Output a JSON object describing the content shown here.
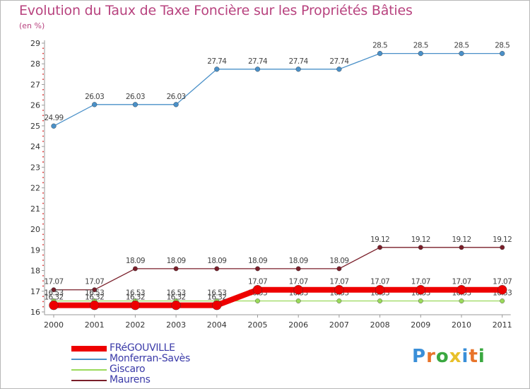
{
  "header": {
    "title": "Evolution du Taux de Taxe Foncière sur les Propriétés Bâties",
    "unit": "(en %)"
  },
  "logo": {
    "text": "Proxiti",
    "colors": [
      "#3a8fd8",
      "#e8742a",
      "#3aa840",
      "#e8c02a",
      "#3a8fd8",
      "#e8742a",
      "#3aa840"
    ]
  },
  "chart_data": {
    "type": "line",
    "x": [
      "2000",
      "2001",
      "2002",
      "2003",
      "2004",
      "2005",
      "2006",
      "2007",
      "2008",
      "2009",
      "2010",
      "2011"
    ],
    "ylim": [
      16,
      29
    ],
    "yticks": [
      "16",
      "17",
      "18",
      "19",
      "20",
      "21",
      "22",
      "23",
      "24",
      "25",
      "26",
      "27",
      "28",
      "29"
    ],
    "grid": false,
    "legend_position": "bottom-left",
    "series": [
      {
        "name": "Maurens",
        "color": "#7a1f2a",
        "values": [
          17.07,
          17.07,
          18.09,
          18.09,
          18.09,
          18.09,
          18.09,
          18.09,
          19.12,
          19.12,
          19.12,
          19.12
        ],
        "labels": [
          "17.07",
          "17.07",
          "18.09",
          "18.09",
          "18.09",
          "18.09",
          "18.09",
          "18.09",
          "19.12",
          "19.12",
          "19.12",
          "19.12"
        ]
      },
      {
        "name": "Giscaro",
        "color": "#9ada5a",
        "values": [
          16.53,
          16.53,
          16.53,
          16.53,
          16.53,
          16.53,
          16.53,
          16.53,
          16.53,
          16.53,
          16.53,
          16.53
        ],
        "labels": [
          "16.53",
          "16.53",
          "16.53",
          "16.53",
          "16.53",
          "16.53",
          "16.53",
          "16.53",
          "16.53",
          "16.53",
          "16.53",
          "16.53"
        ]
      },
      {
        "name": "Monferran-Savès",
        "color": "#4a90c8",
        "values": [
          24.99,
          26.03,
          26.03,
          26.03,
          27.74,
          27.74,
          27.74,
          27.74,
          28.5,
          28.5,
          28.5,
          28.5
        ],
        "labels": [
          "24.99",
          "26.03",
          "26.03",
          "26.03",
          "27.74",
          "27.74",
          "27.74",
          "27.74",
          "28.5",
          "28.5",
          "28.5",
          "28.5"
        ]
      },
      {
        "name": "FRéGOUVILLE",
        "color": "#ee0000",
        "values": [
          16.32,
          16.32,
          16.32,
          16.32,
          16.32,
          17.07,
          17.07,
          17.07,
          17.07,
          17.07,
          17.07,
          17.07
        ],
        "labels": [
          "16.32",
          "16.32",
          "16.32",
          "16.32",
          "16.32",
          "17.07",
          "17.07",
          "17.07",
          "17.07",
          "17.07",
          "17.07",
          "17.07"
        ]
      }
    ],
    "legend_order": [
      "FRéGOUVILLE",
      "Monferran-Savès",
      "Giscaro",
      "Maurens"
    ]
  }
}
